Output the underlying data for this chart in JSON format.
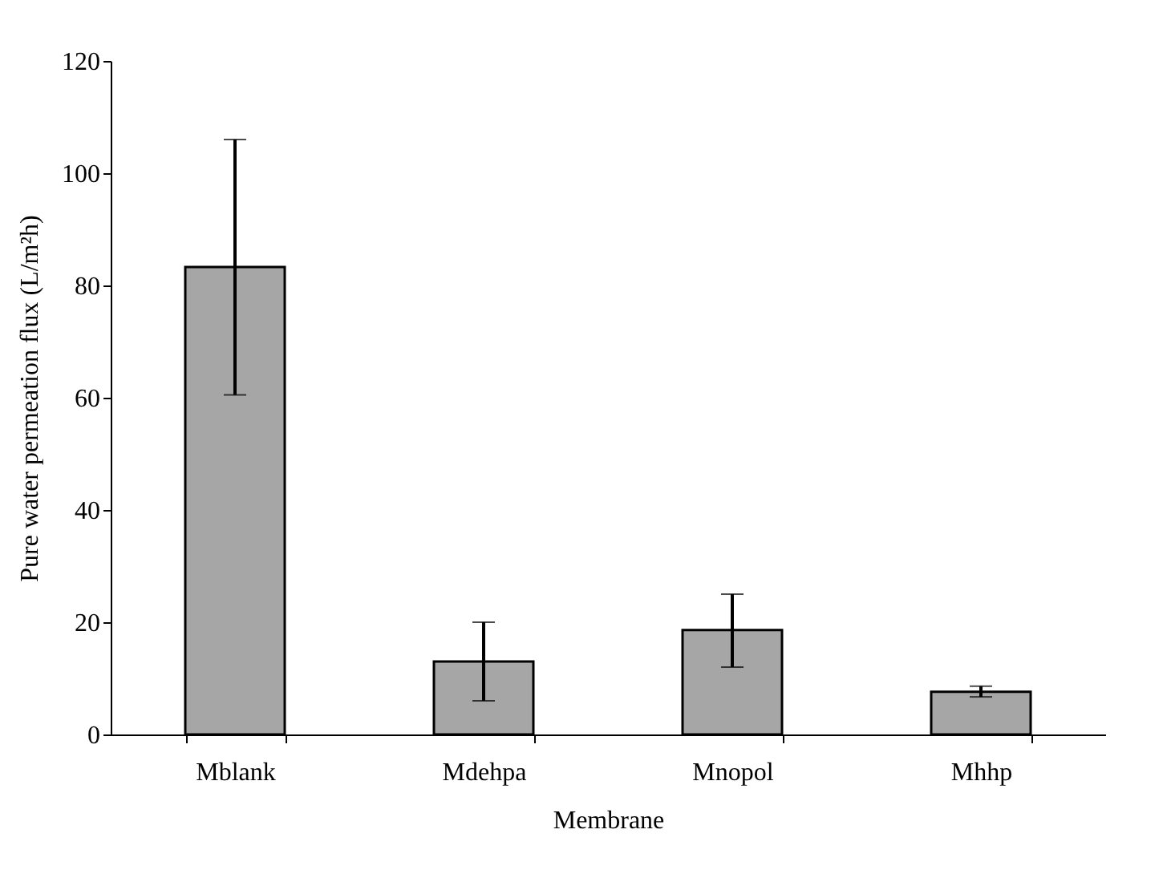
{
  "chart_data": {
    "type": "bar",
    "xlabel": "Membrane",
    "ylabel": "Pure water permeation flux (L/m²h)",
    "categories": [
      "Mblank",
      "Mdehpa",
      "Mnopol",
      "Mhhp"
    ],
    "values": [
      83.3,
      13,
      18.6,
      7.6
    ],
    "errors": [
      [
        60.5,
        106
      ],
      [
        6,
        20
      ],
      [
        12,
        25
      ],
      [
        6.7,
        8.6
      ]
    ],
    "color": "#a6a6a6",
    "ylim": [
      0,
      120
    ],
    "yticks": [
      0,
      20,
      40,
      60,
      80,
      100,
      120
    ],
    "grid": false
  }
}
